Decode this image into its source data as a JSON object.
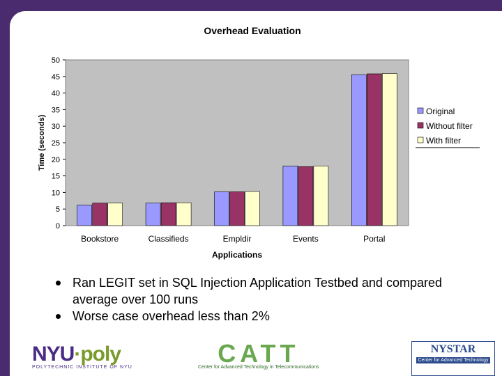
{
  "chart_data": {
    "type": "bar",
    "title": "Overhead Evaluation",
    "xlabel": "Applications",
    "ylabel": "Time (seconds)",
    "ylim": [
      0,
      50
    ],
    "yticks": [
      0,
      5,
      10,
      15,
      20,
      25,
      30,
      35,
      40,
      45,
      50
    ],
    "categories": [
      "Bookstore",
      "Classifieds",
      "Empldir",
      "Events",
      "Portal"
    ],
    "series": [
      {
        "name": "Original",
        "color": "#9999ff",
        "values": [
          6.2,
          6.8,
          10.2,
          18.0,
          45.5
        ]
      },
      {
        "name": "Without filter",
        "color": "#993366",
        "values": [
          6.8,
          6.9,
          10.2,
          17.8,
          45.8
        ]
      },
      {
        "name": "With filter",
        "color": "#ffffcc",
        "values": [
          6.8,
          6.9,
          10.3,
          18.0,
          45.9
        ]
      }
    ],
    "grid": false,
    "legend": "right",
    "plot_background": "#c0c0c0"
  },
  "bullets": [
    "Ran LEGIT set in SQL Injection Application Testbed and compared average over 100 runs",
    "Worse case overhead less than 2%"
  ],
  "logos": {
    "nyu_main_a": "NYU",
    "nyu_main_b": "·poly",
    "nyu_sub": "POLYTECHNIC INSTITUTE OF NYU",
    "catt_main": "CATT",
    "catt_sub": "Center for Advanced Technology in Telecommunications",
    "nystar_main": "NYSTAR",
    "nystar_sub": "Center for Advanced Technology"
  },
  "colors": {
    "frame": "#4a2c6e"
  }
}
